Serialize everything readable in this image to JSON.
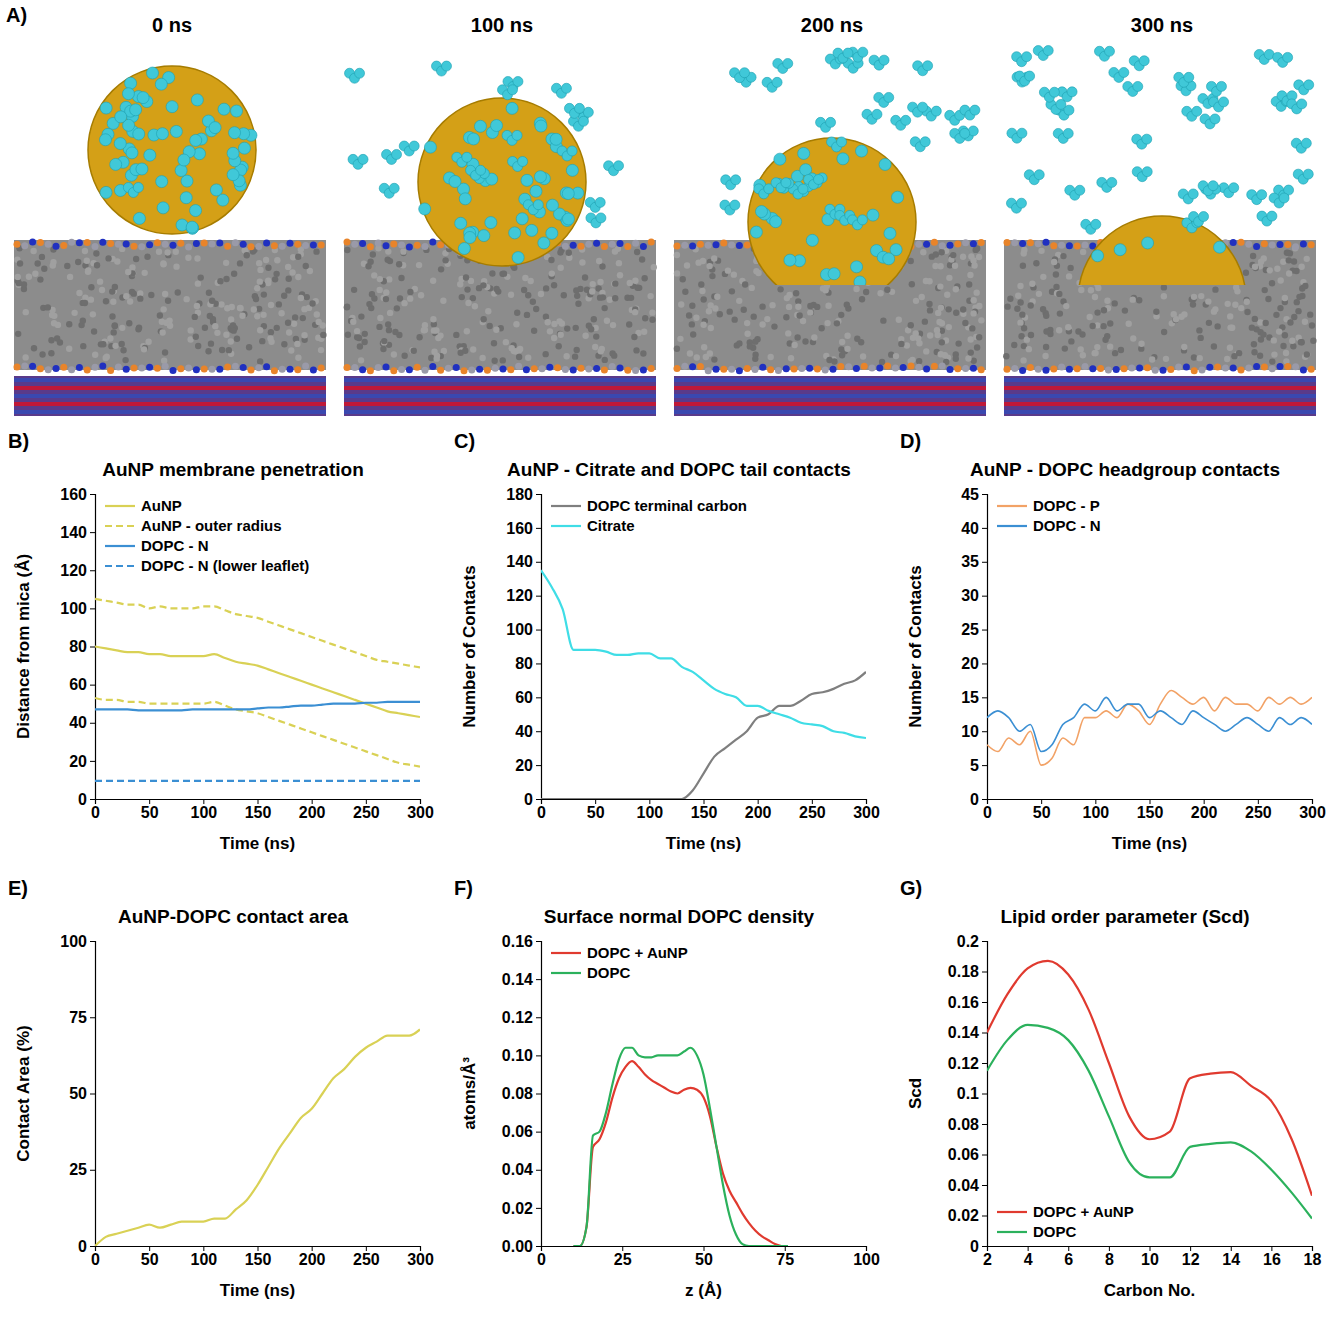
{
  "chart_data": [
    {
      "type": "image",
      "panel": "A)",
      "frames": [
        "0 ns",
        "100 ns",
        "200 ns",
        "300 ns"
      ]
    },
    {
      "type": "line",
      "panel": "B)",
      "title": "AuNP membrane penetration",
      "x_label": "Time (ns)",
      "y_label": "Distance from mica (Å)",
      "x": [
        0,
        10,
        20,
        30,
        40,
        50,
        60,
        70,
        80,
        90,
        100,
        110,
        120,
        130,
        140,
        150,
        160,
        170,
        180,
        190,
        200,
        210,
        220,
        230,
        240,
        250,
        260,
        270,
        280,
        290,
        300
      ],
      "xlim": [
        0,
        300
      ],
      "xticks": [
        0,
        50,
        100,
        150,
        200,
        250,
        300
      ],
      "ylim": [
        0,
        160
      ],
      "yticks": [
        0,
        20,
        40,
        60,
        80,
        100,
        120,
        140,
        160
      ],
      "legend": "upper left",
      "series": [
        {
          "name": "AuNP",
          "color": "#d9d155",
          "line_style": "solid",
          "values": [
            80,
            79,
            78,
            77,
            77,
            76,
            76,
            75,
            75,
            75,
            75,
            76,
            74,
            72,
            71,
            70,
            68,
            66,
            64,
            62,
            60,
            58,
            56,
            54,
            52,
            50,
            48,
            46,
            45,
            44,
            43
          ]
        },
        {
          "name": "AuNP - outer radius",
          "color": "#d9d155",
          "line_style": "dashed",
          "values": [
            105,
            104,
            103,
            102,
            102,
            100,
            101,
            100,
            100,
            100,
            101,
            101,
            99,
            97,
            96,
            95,
            93,
            91,
            89,
            87,
            85,
            83,
            81,
            79,
            77,
            75,
            73,
            72,
            71,
            70,
            69
          ]
        },
        {
          "name": "AuNP - outer radius",
          "color": "#d9d155",
          "line_style": "dashed",
          "values": [
            53,
            52,
            52,
            51,
            51,
            50,
            50,
            50,
            50,
            50,
            50,
            51,
            49,
            47,
            46,
            45,
            43,
            41,
            39,
            37,
            35,
            33,
            31,
            29,
            27,
            25,
            23,
            21,
            19,
            18,
            17
          ]
        },
        {
          "name": "DOPC - N",
          "color": "#3b8fd3",
          "line_style": "solid",
          "values": [
            47,
            47,
            47,
            47,
            46.5,
            46.5,
            46.5,
            46.5,
            46.5,
            47,
            47,
            47,
            47,
            47,
            47,
            47.5,
            48,
            48,
            48.5,
            49,
            49,
            49.5,
            50,
            50,
            50,
            50.5,
            50.5,
            51,
            51,
            51,
            51
          ]
        },
        {
          "name": "DOPC - N (lower leaflet)",
          "color": "#3b8fd3",
          "line_style": "dashed",
          "values": [
            9.5,
            9.5,
            9.5,
            9.5,
            9.5,
            9.5,
            9.5,
            9.5,
            9.5,
            9.5,
            9.5,
            9.5,
            9.5,
            9.5,
            9.5,
            9.5,
            9.5,
            9.5,
            9.5,
            9.5,
            9.5,
            9.5,
            9.5,
            9.5,
            9.5,
            9.5,
            9.5,
            9.5,
            9.5,
            9.5,
            9.5
          ]
        }
      ]
    },
    {
      "type": "line",
      "panel": "C)",
      "title": "AuNP - Citrate and DOPC tail contacts",
      "x_label": "Time (ns)",
      "y_label": "Number of Contacts",
      "x": [
        0,
        10,
        20,
        30,
        40,
        50,
        60,
        70,
        80,
        90,
        100,
        110,
        120,
        130,
        140,
        150,
        160,
        170,
        180,
        190,
        200,
        210,
        220,
        230,
        240,
        250,
        260,
        270,
        280,
        290,
        300
      ],
      "xlim": [
        0,
        300
      ],
      "xticks": [
        0,
        50,
        100,
        150,
        200,
        250,
        300
      ],
      "ylim": [
        0,
        180
      ],
      "yticks": [
        0,
        20,
        40,
        60,
        80,
        100,
        120,
        140,
        160,
        180
      ],
      "legend": "upper left",
      "series": [
        {
          "name": "DOPC terminal carbon",
          "color": "#7f7f7f",
          "line_style": "solid",
          "values": [
            0,
            0,
            0,
            0,
            0,
            0,
            0,
            0,
            0,
            0,
            0,
            0,
            0,
            0,
            5,
            15,
            25,
            30,
            35,
            40,
            48,
            50,
            55,
            55,
            58,
            62,
            63,
            65,
            68,
            70,
            75
          ]
        },
        {
          "name": "Citrate",
          "color": "#3fdde6",
          "line_style": "solid",
          "values": [
            135,
            125,
            112,
            88,
            88,
            88,
            87,
            85,
            85,
            86,
            86,
            83,
            83,
            78,
            75,
            70,
            65,
            62,
            60,
            55,
            55,
            52,
            50,
            48,
            45,
            44,
            43,
            40,
            39,
            37,
            36
          ]
        }
      ]
    },
    {
      "type": "line",
      "panel": "D)",
      "title": "AuNP - DOPC headgroup contacts",
      "x_label": "Time (ns)",
      "y_label": "Number of Contacts",
      "x": [
        0,
        10,
        20,
        30,
        40,
        50,
        60,
        70,
        80,
        90,
        100,
        110,
        120,
        130,
        140,
        150,
        160,
        170,
        180,
        190,
        200,
        210,
        220,
        230,
        240,
        250,
        260,
        270,
        280,
        290,
        300
      ],
      "xlim": [
        0,
        300
      ],
      "xticks": [
        0,
        50,
        100,
        150,
        200,
        250,
        300
      ],
      "ylim": [
        0,
        45
      ],
      "yticks": [
        0,
        5,
        10,
        15,
        20,
        25,
        30,
        35,
        40,
        45
      ],
      "legend": "upper left",
      "series": [
        {
          "name": "DOPC - P",
          "color": "#f2a266",
          "line_style": "solid",
          "values": [
            8,
            7,
            9,
            8,
            10,
            5,
            6,
            9,
            8,
            12,
            12,
            13,
            12,
            14,
            13,
            11,
            14,
            16,
            15,
            14,
            15,
            13,
            15,
            14,
            14,
            13,
            15,
            14,
            15,
            14,
            15
          ]
        },
        {
          "name": "DOPC - N",
          "color": "#3b8fd3",
          "line_style": "solid",
          "values": [
            12,
            13,
            12,
            10,
            11,
            7,
            8,
            11,
            12,
            14,
            13,
            15,
            13,
            14,
            14,
            12,
            13,
            12,
            11,
            13,
            12,
            11,
            10,
            11,
            12,
            11,
            10,
            12,
            11,
            12,
            11
          ]
        }
      ]
    },
    {
      "type": "line",
      "panel": "E)",
      "title": "AuNP-DOPC contact area",
      "x_label": "Time (ns)",
      "y_label": "Contact Area (%)",
      "x": [
        0,
        10,
        20,
        30,
        40,
        50,
        60,
        70,
        80,
        90,
        100,
        110,
        120,
        130,
        140,
        150,
        160,
        170,
        180,
        190,
        200,
        210,
        220,
        230,
        240,
        250,
        260,
        270,
        280,
        290,
        300
      ],
      "xlim": [
        0,
        300
      ],
      "xticks": [
        0,
        50,
        100,
        150,
        200,
        250,
        300
      ],
      "ylim": [
        0,
        100
      ],
      "yticks": [
        0,
        25,
        50,
        75,
        100
      ],
      "series": [
        {
          "color": "#d9d155",
          "line_style": "solid",
          "values": [
            0,
            3,
            4,
            5,
            6,
            7,
            6,
            7,
            8,
            8,
            8,
            9,
            9,
            12,
            15,
            20,
            26,
            32,
            37,
            42,
            45,
            50,
            55,
            58,
            62,
            65,
            67,
            69,
            69,
            69,
            71
          ]
        }
      ]
    },
    {
      "type": "line",
      "panel": "F)",
      "title": "Surface normal DOPC density",
      "x_label": "z (Å)",
      "y_label": "atoms/Å³",
      "x": [
        10,
        12,
        14,
        16,
        18,
        20,
        22,
        24,
        26,
        28,
        30,
        32,
        34,
        36,
        38,
        40,
        42,
        44,
        46,
        48,
        50,
        52,
        54,
        56,
        58,
        60,
        62,
        64,
        66,
        68,
        70,
        72,
        74,
        76
      ],
      "xlim": [
        0,
        100
      ],
      "xticks": [
        0,
        25,
        50,
        75,
        100
      ],
      "ylim": [
        0,
        0.16
      ],
      "yticks": [
        {
          "value": 0,
          "label": "0.00"
        },
        0.02,
        0.04,
        0.06,
        0.08,
        {
          "value": 0.1,
          "label": "0.10"
        },
        0.12,
        0.14,
        0.16
      ],
      "legend": "upper left",
      "series": [
        {
          "name": "DOPC + AuNP",
          "color": "#e03a2f",
          "line_style": "solid",
          "values": [
            0,
            0,
            0.01,
            0.052,
            0.056,
            0.065,
            0.078,
            0.088,
            0.094,
            0.097,
            0.094,
            0.09,
            0.087,
            0.085,
            0.083,
            0.081,
            0.08,
            0.082,
            0.083,
            0.082,
            0.078,
            0.068,
            0.052,
            0.038,
            0.029,
            0.023,
            0.017,
            0.012,
            0.008,
            0.005,
            0.003,
            0.001,
            0,
            0
          ]
        },
        {
          "name": "DOPC",
          "color": "#2bb15c",
          "line_style": "solid",
          "values": [
            0,
            0,
            0.01,
            0.058,
            0.06,
            0.07,
            0.085,
            0.098,
            0.104,
            0.104,
            0.1,
            0.099,
            0.099,
            0.1,
            0.1,
            0.1,
            0.1,
            0.102,
            0.104,
            0.1,
            0.09,
            0.072,
            0.052,
            0.032,
            0.016,
            0.006,
            0.001,
            0,
            0,
            0,
            0,
            0,
            0,
            0
          ]
        }
      ]
    },
    {
      "type": "line",
      "panel": "G)",
      "title": "Lipid order parameter (Scd)",
      "x_label": "Carbon No.",
      "y_label": "Scd",
      "x": [
        2,
        3,
        4,
        5,
        6,
        7,
        8,
        9,
        10,
        11,
        12,
        13,
        14,
        15,
        16,
        17,
        18
      ],
      "xlim": [
        2,
        18
      ],
      "xticks": [
        2,
        4,
        6,
        8,
        10,
        12,
        14,
        16,
        18
      ],
      "ylim": [
        0,
        0.2
      ],
      "yticks": [
        0,
        0.02,
        0.04,
        0.06,
        0.08,
        0.1,
        0.12,
        0.14,
        0.16,
        0.18,
        0.2
      ],
      "legend": "lower left",
      "series": [
        {
          "name": "DOPC + AuNP",
          "color": "#e03a2f",
          "line_style": "solid",
          "values": [
            0.14,
            0.165,
            0.182,
            0.187,
            0.178,
            0.155,
            0.12,
            0.085,
            0.07,
            0.075,
            0.11,
            0.113,
            0.114,
            0.105,
            0.095,
            0.07,
            0.033
          ]
        },
        {
          "name": "DOPC",
          "color": "#2bb15c",
          "line_style": "solid",
          "values": [
            0.115,
            0.135,
            0.145,
            0.143,
            0.135,
            0.115,
            0.085,
            0.055,
            0.045,
            0.045,
            0.065,
            0.067,
            0.068,
            0.062,
            0.05,
            0.035,
            0.018
          ]
        }
      ]
    }
  ]
}
